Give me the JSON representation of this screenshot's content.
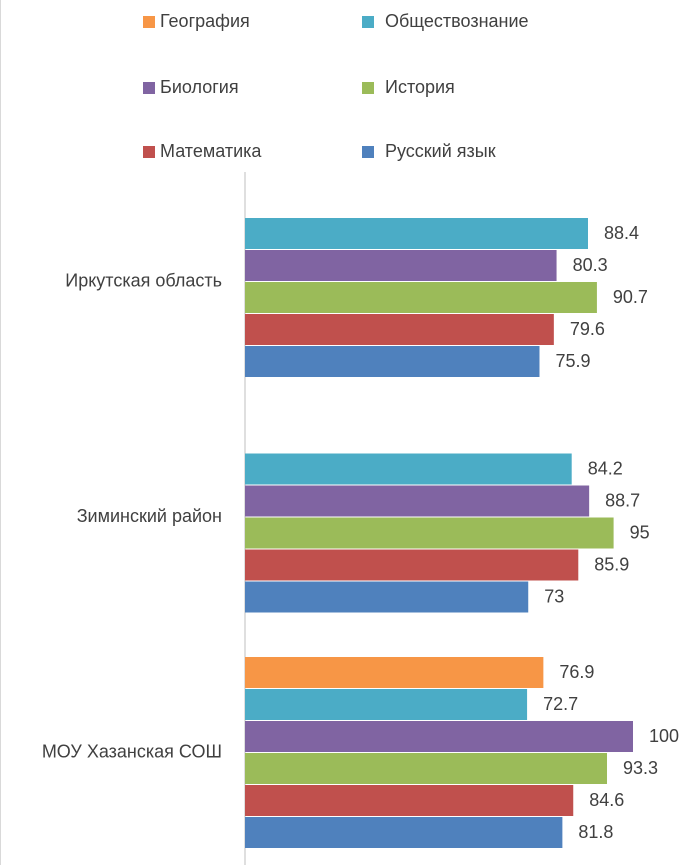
{
  "chart_data": {
    "type": "bar",
    "orientation": "horizontal",
    "categories": [
      "Иркутская область",
      "Зиминский район",
      "МОУ Хазанская СОШ"
    ],
    "series": [
      {
        "name": "География",
        "color": "#f79646",
        "values": [
          null,
          null,
          76.9
        ]
      },
      {
        "name": "Обществознание",
        "color": "#4bacc6",
        "values": [
          88.4,
          84.2,
          72.7
        ]
      },
      {
        "name": "Биология",
        "color": "#8064a2",
        "values": [
          80.3,
          88.7,
          100
        ]
      },
      {
        "name": "История",
        "color": "#9bbb59",
        "values": [
          90.7,
          95,
          93.3
        ]
      },
      {
        "name": "Математика",
        "color": "#c0504d",
        "values": [
          79.6,
          85.9,
          84.6
        ]
      },
      {
        "name": "Русский язык",
        "color": "#4f81bd",
        "values": [
          75.9,
          73,
          81.8
        ]
      }
    ],
    "xlim": [
      0,
      100
    ]
  }
}
